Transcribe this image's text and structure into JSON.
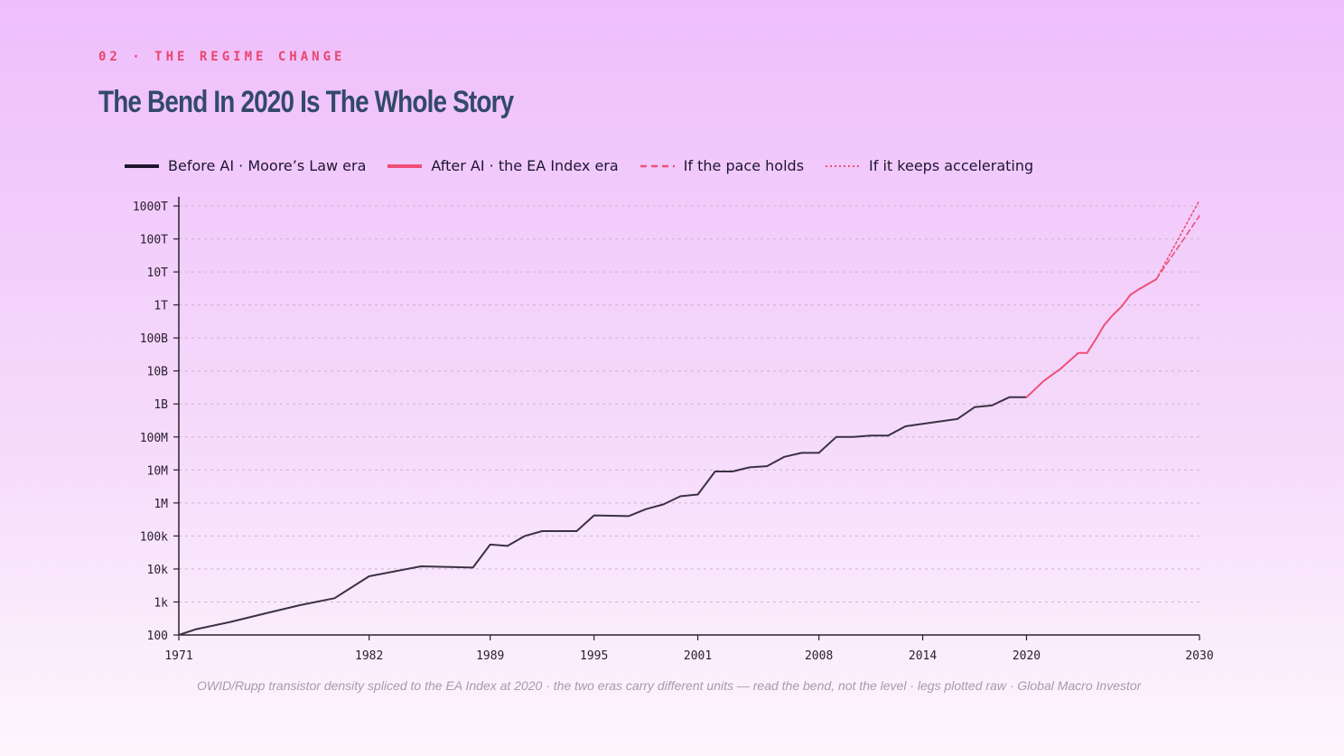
{
  "header": {
    "eyebrow": "02 · THE REGIME CHANGE",
    "title": "The Bend In 2020 Is The Whole Story"
  },
  "legend": [
    {
      "label": "Before AI · Moore’s Law era",
      "color": "#1f1630",
      "style": "solid"
    },
    {
      "label": "After AI · the EA Index era",
      "color": "#ef4f77",
      "style": "solid"
    },
    {
      "label": "If the pace holds",
      "color": "#ef4f77",
      "style": "dashed"
    },
    {
      "label": "If it keeps accelerating",
      "color": "#ef4f77",
      "style": "dotted"
    }
  ],
  "footnote": "OWID/Rupp transistor density spliced to the EA Index at 2020 · the two eras carry different units — read the bend, not the level · legs plotted raw · Global Macro Investor",
  "colors": {
    "before": "#3a3145",
    "after": "#ef4f77",
    "grid": "#c9b6cc",
    "axis": "#2a2030"
  },
  "chart_data": {
    "type": "line",
    "x_scale": "linear",
    "y_scale": "log",
    "xlim": [
      1971,
      2030
    ],
    "ylim": [
      100,
      1000000000000000.0
    ],
    "x_ticks": [
      1971,
      1982,
      1989,
      1995,
      2001,
      2008,
      2014,
      2020,
      2030
    ],
    "y_ticks": [
      {
        "value": 100,
        "label": "100"
      },
      {
        "value": 1000,
        "label": "1k"
      },
      {
        "value": 10000,
        "label": "10k"
      },
      {
        "value": 100000,
        "label": "100k"
      },
      {
        "value": 1000000,
        "label": "1M"
      },
      {
        "value": 10000000,
        "label": "10M"
      },
      {
        "value": 100000000,
        "label": "100M"
      },
      {
        "value": 1000000000,
        "label": "1B"
      },
      {
        "value": 10000000000,
        "label": "10B"
      },
      {
        "value": 100000000000,
        "label": "100B"
      },
      {
        "value": 1000000000000,
        "label": "1T"
      },
      {
        "value": 10000000000000,
        "label": "10T"
      },
      {
        "value": 100000000000000,
        "label": "100T"
      },
      {
        "value": 1000000000000000,
        "label": "1000T"
      }
    ],
    "grid": true,
    "legend_position": "top",
    "series": [
      {
        "name": "Before AI · Moore’s Law era",
        "style": "solid",
        "color": "#3a3145",
        "points": [
          [
            1971,
            100
          ],
          [
            1972,
            150
          ],
          [
            1974,
            250
          ],
          [
            1976,
            450
          ],
          [
            1978,
            800
          ],
          [
            1980,
            1300
          ],
          [
            1982,
            6000
          ],
          [
            1985,
            12000
          ],
          [
            1988,
            11000
          ],
          [
            1989,
            55000
          ],
          [
            1990,
            50000
          ],
          [
            1991,
            100000
          ],
          [
            1992,
            140000
          ],
          [
            1994,
            140000
          ],
          [
            1995,
            420000
          ],
          [
            1997,
            400000
          ],
          [
            1998,
            650000
          ],
          [
            1999,
            900000
          ],
          [
            2000,
            1600000
          ],
          [
            2001,
            1800000
          ],
          [
            2002,
            9000000
          ],
          [
            2003,
            9000000
          ],
          [
            2004,
            12000000
          ],
          [
            2005,
            13000000
          ],
          [
            2006,
            25000000
          ],
          [
            2007,
            33000000
          ],
          [
            2008,
            33000000
          ],
          [
            2009,
            100000000
          ],
          [
            2010,
            100000000
          ],
          [
            2011,
            110000000
          ],
          [
            2012,
            110000000
          ],
          [
            2013,
            210000000
          ],
          [
            2014,
            250000000
          ],
          [
            2016,
            350000000
          ],
          [
            2017,
            800000000
          ],
          [
            2018,
            900000000
          ],
          [
            2019,
            1600000000
          ],
          [
            2020,
            1600000000
          ]
        ]
      },
      {
        "name": "After AI · the EA Index era",
        "style": "solid",
        "color": "#ef4f77",
        "points": [
          [
            2020,
            1600000000
          ],
          [
            2021,
            5000000000
          ],
          [
            2022,
            12000000000
          ],
          [
            2023,
            35000000000
          ],
          [
            2023.5,
            35000000000
          ],
          [
            2024,
            90000000000
          ],
          [
            2024.5,
            250000000000
          ],
          [
            2025,
            500000000000
          ],
          [
            2025.5,
            900000000000
          ],
          [
            2026,
            2000000000000
          ],
          [
            2026.5,
            3000000000000
          ],
          [
            2027.5,
            6000000000000
          ]
        ]
      },
      {
        "name": "If the pace holds",
        "style": "dashed",
        "color": "#ef4f77",
        "points": [
          [
            2027.5,
            6000000000000
          ],
          [
            2030,
            500000000000000
          ]
        ]
      },
      {
        "name": "If it keeps accelerating",
        "style": "dotted",
        "color": "#ef4f77",
        "points": [
          [
            2027.5,
            6000000000000
          ],
          [
            2030,
            1500000000000000
          ]
        ]
      }
    ]
  }
}
